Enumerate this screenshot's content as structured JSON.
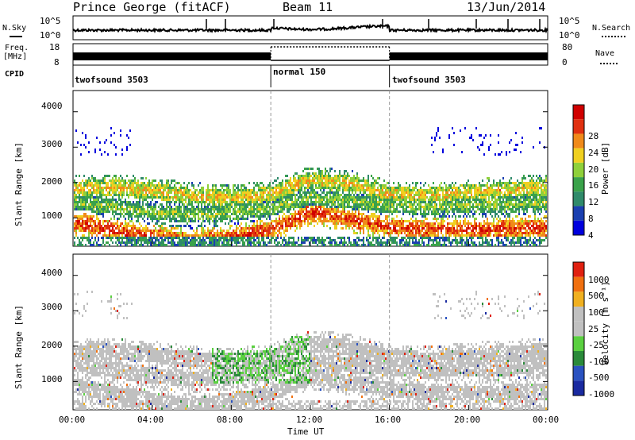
{
  "header": {
    "station": "Prince George (fitACF)",
    "beam": "Beam 11",
    "date": "13/Jun/2014"
  },
  "side_labels": {
    "nsky": "N.Sky",
    "nsearch": "N.Search",
    "freq_line1": "Freq.",
    "freq_line2": "[MHz]",
    "nave": "Nave",
    "cpid": "CPID"
  },
  "noise_panel": {
    "left_ticks": [
      "10^5",
      "10^0"
    ],
    "right_ticks": [
      "10^5",
      "10^0"
    ]
  },
  "freq_panel": {
    "left_ticks": [
      "18",
      "8"
    ],
    "right_ticks": [
      "80",
      "0"
    ]
  },
  "cpid_segments": [
    {
      "label": "twofsound 3503",
      "start_h": 0,
      "end_h": 10
    },
    {
      "label": "normal 150",
      "start_h": 10,
      "end_h": 16
    },
    {
      "label": "twofsound 3503",
      "start_h": 16,
      "end_h": 24
    }
  ],
  "power_panel": {
    "ylabel": "Slant Range [km]",
    "yticks": [
      "4000",
      "3000",
      "2000",
      "1000"
    ],
    "colorbar_label": "Power [dB]",
    "colorbar_ticks": [
      "28",
      "24",
      "20",
      "16",
      "12",
      "8",
      "4"
    ]
  },
  "velocity_panel": {
    "ylabel": "Slant Range [km]",
    "yticks": [
      "4000",
      "3000",
      "2000",
      "1000"
    ],
    "colorbar_label": "Velocity [m s⁻¹]",
    "colorbar_ticks": [
      "1000",
      "500",
      "100",
      "25",
      "-25",
      "-100",
      "-500",
      "-1000"
    ]
  },
  "x_axis": {
    "label": "Time UT",
    "ticks": [
      "00:00",
      "04:00",
      "08:00",
      "12:00",
      "16:00",
      "20:00",
      "00:00"
    ]
  },
  "colors": {
    "power_scale": [
      "#0000dd",
      "#1a3fb0",
      "#2f8a6a",
      "#3aa24a",
      "#8fd03a",
      "#f0d020",
      "#f08a1a",
      "#e03010",
      "#d00000"
    ],
    "velocity_scale": [
      "#1a2aa0",
      "#2a52c0",
      "#2a8a3a",
      "#5ad040",
      "#c0c0c0",
      "#c0c0c0",
      "#f0b020",
      "#f07010",
      "#e02010"
    ]
  },
  "chart_data": {
    "type": "heatmap",
    "x_range_hours": [
      0,
      24
    ],
    "y_range_km": [
      200,
      4600
    ],
    "power_bands": [
      {
        "center_km": [
          1850,
          1900,
          1800,
          1650,
          1600,
          1700,
          1950,
          2100,
          2000,
          1700,
          1650,
          1750,
          1900
        ],
        "hours": [
          0,
          2,
          4,
          6,
          8,
          10,
          11,
          12,
          14,
          16,
          18,
          20,
          24
        ],
        "value_db": 20
      },
      {
        "center_km": [
          1500,
          1350,
          1200,
          1100,
          1200,
          1300,
          1500,
          1600,
          1500,
          1400,
          1350,
          1400,
          1450
        ],
        "hours": [
          0,
          2,
          4,
          6,
          8,
          10,
          11,
          12,
          14,
          16,
          18,
          20,
          24
        ],
        "value_db": 16
      },
      {
        "center_km": [
          900,
          700,
          500,
          350,
          500,
          700,
          950,
          1200,
          1000,
          800,
          700,
          700,
          750
        ],
        "hours": [
          0,
          2,
          4,
          6,
          8,
          10,
          11,
          12,
          14,
          16,
          18,
          20,
          24
        ],
        "value_db": 26
      }
    ]
  }
}
